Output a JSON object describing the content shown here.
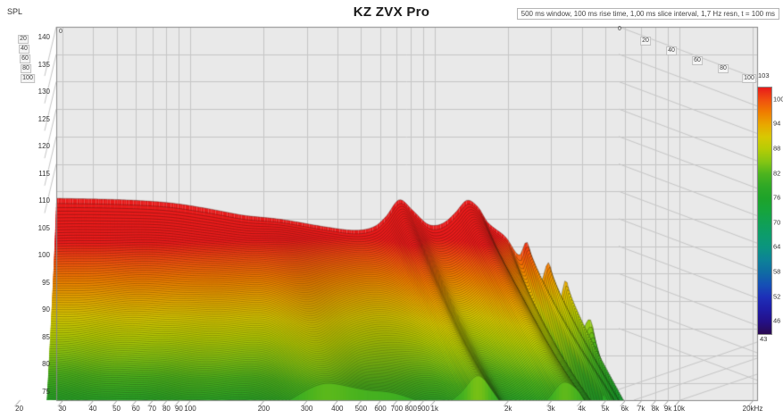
{
  "title": "KZ ZVX Pro",
  "info_banner": "500 ms window, 100 ms rise time, 1,00 ms slice interval, 1,7 Hz resn, t = 100 ms",
  "axes": {
    "y": {
      "label": "SPL",
      "tick_labels": [
        "140",
        "135",
        "130",
        "125",
        "120",
        "115",
        "110",
        "105",
        "100",
        "95",
        "90",
        "85",
        "80",
        "75"
      ]
    },
    "x": {
      "tick_labels": [
        "20",
        "30",
        "40",
        "50",
        "60",
        "70",
        "80",
        "90",
        "100",
        "200",
        "300",
        "400",
        "500",
        "600",
        "700",
        "800",
        "900",
        "1k",
        "2k",
        "3k",
        "4k",
        "5k",
        "6k",
        "7k",
        "8k",
        "9k",
        "10k",
        "20kHz"
      ],
      "tick_freqs_hz": [
        20,
        30,
        40,
        50,
        60,
        70,
        80,
        90,
        100,
        200,
        300,
        400,
        500,
        600,
        700,
        800,
        900,
        1000,
        2000,
        3000,
        4000,
        5000,
        6000,
        7000,
        8000,
        9000,
        10000,
        20000
      ]
    },
    "time": {
      "tick_labels": [
        "0",
        "20",
        "40",
        "60",
        "80",
        "100"
      ]
    }
  },
  "legend": {
    "top_label": "103",
    "bottom_label": "43",
    "tick_labels": [
      "100",
      "94",
      "88",
      "82",
      "76",
      "70",
      "64",
      "58",
      "52",
      "46"
    ],
    "range_db": [
      43,
      103
    ],
    "colormap": [
      [
        43,
        "#2a0a50"
      ],
      [
        46,
        "#241087"
      ],
      [
        49,
        "#1f1da6"
      ],
      [
        52,
        "#1d2fb8"
      ],
      [
        55,
        "#1550b5"
      ],
      [
        58,
        "#0f6ba3"
      ],
      [
        61,
        "#0d8298"
      ],
      [
        64,
        "#0b9480"
      ],
      [
        67,
        "#0c9c6c"
      ],
      [
        70,
        "#10a055"
      ],
      [
        73,
        "#16a43c"
      ],
      [
        76,
        "#1ea32a"
      ],
      [
        79,
        "#2fa826"
      ],
      [
        82,
        "#4db41e"
      ],
      [
        85,
        "#86c513"
      ],
      [
        88,
        "#b5cc05"
      ],
      [
        91,
        "#d8c802"
      ],
      [
        94,
        "#e9a700"
      ],
      [
        97,
        "#f07d00"
      ],
      [
        100,
        "#f0500f"
      ],
      [
        103,
        "#e81b1b"
      ]
    ]
  },
  "chart_data": {
    "type": "waterfall",
    "title": "KZ ZVX Pro",
    "xlabel_unit": "Hz",
    "ylabel": "SPL",
    "spl_axis_range_db": [
      75,
      140
    ],
    "freq_range_hz": [
      20,
      20000
    ],
    "time_range_ms": [
      0,
      100
    ],
    "slice_interval_ms": 1,
    "window_ms": 500,
    "rise_time_ms": 100,
    "resolution_hz": 1.7,
    "response_t0_spl_db": [
      [
        20,
        110.4
      ],
      [
        45,
        110.1
      ],
      [
        80,
        109.5
      ],
      [
        126,
        108.4
      ],
      [
        200,
        107.0
      ],
      [
        315,
        106.2
      ],
      [
        564,
        104.6
      ],
      [
        800,
        104.0
      ],
      [
        1000,
        104.8
      ],
      [
        1150,
        106.8
      ],
      [
        1350,
        110.1
      ],
      [
        1590,
        108.0
      ],
      [
        1900,
        105.3
      ],
      [
        2140,
        105.0
      ],
      [
        2400,
        105.8
      ],
      [
        2700,
        107.6
      ],
      [
        3100,
        110.0
      ],
      [
        3560,
        108.6
      ],
      [
        4000,
        105.6
      ],
      [
        5000,
        102.6
      ],
      [
        5900,
        99.0
      ],
      [
        6500,
        101.6
      ],
      [
        7500,
        93.0
      ],
      [
        8500,
        97.5
      ],
      [
        9500,
        89.0
      ],
      [
        10500,
        94.0
      ],
      [
        12000,
        83.0
      ],
      [
        14200,
        86.0
      ],
      [
        16000,
        76.0
      ],
      [
        20000,
        70.0
      ]
    ],
    "decay_at_100ms_db": [
      [
        20,
        38
      ],
      [
        45,
        35
      ],
      [
        100,
        32.5
      ],
      [
        200,
        29
      ],
      [
        315,
        23
      ],
      [
        500,
        24
      ],
      [
        800,
        25
      ],
      [
        1350,
        26
      ],
      [
        1900,
        30
      ],
      [
        2400,
        28
      ],
      [
        3100,
        26.5
      ],
      [
        4000,
        28
      ],
      [
        5000,
        31
      ],
      [
        5900,
        42
      ],
      [
        6500,
        30
      ],
      [
        7500,
        46
      ],
      [
        8500,
        33
      ],
      [
        9500,
        48
      ],
      [
        10500,
        35
      ],
      [
        12000,
        52
      ],
      [
        16000,
        55
      ],
      [
        20000,
        58
      ]
    ]
  }
}
